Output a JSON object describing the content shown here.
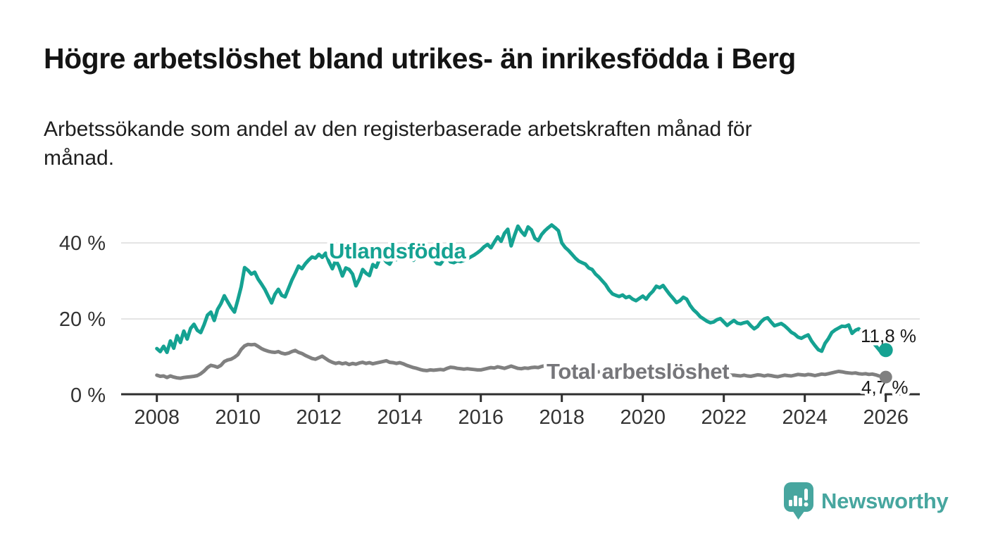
{
  "header": {
    "title": "Högre arbetslöshet bland utrikes- än inrikesfödda i Berg",
    "subtitle_lines": [
      "Arbetssökande som andel av den registerbaserade arbetskraften månad för",
      "månad."
    ]
  },
  "branding": {
    "name": "Newsworthy",
    "icon": "newsworthy-speech-bubble-bar-chart-icon",
    "color": "#47A69F"
  },
  "chart_data": {
    "type": "line",
    "x_tick_labels": [
      "2008",
      "2010",
      "2012",
      "2014",
      "2016",
      "2018",
      "2020",
      "2022",
      "2024",
      "2026"
    ],
    "y_ticks": [
      {
        "label": "0 %",
        "value": 0
      },
      {
        "label": "20 %",
        "value": 20
      },
      {
        "label": "40 %",
        "value": 40
      }
    ],
    "xlim": [
      2007.1,
      2026.85
    ],
    "ylim": [
      0,
      45
    ],
    "grid": "horizontal",
    "grid_color": "#dcdcdc",
    "axis_color": "#2e2e2e",
    "unit": "%",
    "series": [
      {
        "name": "Utlandsfödda",
        "color": "#15A292",
        "end_label": "11,8 %",
        "start_year": 2008,
        "points_per_year": 12,
        "values": [
          12.2,
          11.4,
          12.8,
          11.2,
          14.2,
          12.3,
          15.6,
          13.8,
          16.8,
          14.7,
          17.5,
          18.6,
          17.0,
          16.4,
          18.5,
          21.0,
          21.8,
          19.6,
          22.5,
          24.0,
          26.1,
          24.5,
          23.0,
          21.8,
          25.0,
          28.5,
          33.5,
          32.8,
          31.8,
          32.3,
          30.5,
          29.2,
          27.8,
          26.0,
          24.2,
          26.5,
          27.8,
          26.2,
          25.8,
          28.0,
          30.2,
          32.0,
          33.9,
          33.2,
          34.5,
          35.5,
          36.3,
          36.0,
          37.0,
          36.2,
          37.3,
          35.0,
          33.2,
          35.4,
          33.8,
          31.3,
          33.4,
          33.0,
          31.8,
          28.7,
          30.5,
          33.0,
          32.0,
          31.4,
          34.3,
          33.6,
          35.8,
          36.2,
          35.0,
          34.4,
          36.0,
          35.6,
          36.5,
          36.0,
          36.8,
          36.2,
          35.4,
          36.6,
          36.2,
          36.9,
          36.4,
          36.8,
          35.8,
          34.6,
          34.4,
          35.6,
          36.3,
          35.0,
          34.8,
          35.3,
          35.1,
          35.4,
          35.8,
          36.3,
          36.8,
          37.4,
          38.1,
          39.0,
          39.6,
          38.7,
          40.2,
          41.6,
          40.4,
          42.5,
          43.6,
          39.2,
          42.0,
          44.4,
          43.0,
          42.0,
          44.2,
          43.4,
          41.2,
          40.6,
          42.2,
          43.2,
          44.0,
          44.7,
          44.0,
          43.2,
          40.0,
          38.8,
          38.0,
          37.0,
          36.0,
          35.2,
          34.8,
          34.4,
          33.4,
          33.0,
          31.8,
          31.0,
          30.0,
          29.0,
          27.6,
          26.6,
          26.2,
          25.9,
          26.3,
          25.6,
          25.9,
          25.2,
          24.8,
          25.4,
          26.0,
          25.2,
          26.4,
          27.3,
          28.6,
          28.2,
          28.8,
          27.6,
          26.4,
          25.4,
          24.3,
          24.8,
          25.7,
          25.2,
          23.6,
          22.4,
          21.6,
          20.6,
          20.0,
          19.4,
          19.0,
          19.2,
          19.8,
          20.1,
          19.2,
          18.3,
          19.0,
          19.6,
          18.9,
          18.7,
          19.0,
          19.2,
          18.2,
          17.4,
          18.0,
          19.2,
          20.0,
          20.3,
          19.2,
          18.2,
          18.5,
          18.8,
          18.2,
          17.4,
          16.5,
          16.0,
          15.2,
          14.9,
          15.4,
          15.8,
          14.2,
          13.0,
          11.9,
          11.5,
          13.6,
          14.8,
          16.4,
          17.1,
          17.6,
          18.1,
          18.0,
          18.4,
          16.2,
          17.0,
          17.4,
          16.4,
          16.0,
          15.0,
          14.0,
          13.0,
          11.9,
          10.8,
          11.8
        ]
      },
      {
        "name": "Total arbetslöshet",
        "color": "#808080",
        "label_color": "#76767a",
        "end_label": "4,7 %",
        "start_year": 2008,
        "points_per_year": 12,
        "values": [
          5.2,
          4.9,
          5.0,
          4.6,
          5.0,
          4.7,
          4.5,
          4.4,
          4.6,
          4.7,
          4.8,
          4.9,
          5.1,
          5.6,
          6.3,
          7.2,
          7.8,
          7.6,
          7.3,
          7.8,
          8.8,
          9.2,
          9.4,
          9.9,
          10.6,
          12.0,
          12.9,
          13.3,
          13.2,
          13.3,
          12.8,
          12.2,
          11.8,
          11.5,
          11.3,
          11.2,
          11.4,
          11.0,
          10.8,
          11.0,
          11.4,
          11.7,
          11.2,
          10.9,
          10.4,
          10.0,
          9.6,
          9.4,
          9.8,
          10.2,
          9.6,
          9.0,
          8.6,
          8.3,
          8.5,
          8.2,
          8.4,
          8.0,
          8.3,
          8.1,
          8.4,
          8.6,
          8.3,
          8.5,
          8.2,
          8.4,
          8.6,
          8.8,
          9.0,
          8.6,
          8.5,
          8.3,
          8.5,
          8.2,
          7.8,
          7.5,
          7.2,
          7.0,
          6.7,
          6.5,
          6.4,
          6.6,
          6.5,
          6.6,
          6.7,
          6.6,
          7.0,
          7.3,
          7.2,
          7.0,
          6.9,
          6.8,
          6.9,
          6.8,
          6.7,
          6.6,
          6.6,
          6.8,
          7.0,
          7.2,
          7.1,
          7.4,
          7.2,
          7.0,
          7.3,
          7.6,
          7.3,
          7.0,
          6.9,
          7.1,
          7.0,
          7.2,
          7.3,
          7.2,
          7.5,
          7.7,
          7.3,
          7.0,
          6.9,
          6.8,
          6.8,
          6.7,
          6.6,
          6.5,
          6.4,
          6.4,
          6.3,
          6.3,
          6.2,
          6.2,
          6.1,
          6.1,
          6.0,
          6.0,
          5.9,
          5.9,
          5.8,
          5.8,
          5.8,
          5.7,
          5.7,
          5.8,
          5.8,
          5.9,
          6.0,
          6.2,
          6.5,
          6.8,
          7.0,
          7.0,
          6.9,
          6.8,
          6.7,
          6.6,
          6.5,
          6.4,
          6.3,
          6.2,
          6.1,
          6.0,
          5.9,
          5.8,
          5.7,
          5.6,
          5.6,
          5.5,
          5.5,
          5.4,
          5.4,
          5.3,
          5.2,
          5.2,
          5.1,
          5.0,
          5.2,
          5.0,
          4.9,
          5.1,
          5.3,
          5.2,
          5.0,
          5.2,
          5.1,
          4.9,
          4.8,
          5.0,
          5.2,
          5.1,
          5.0,
          5.2,
          5.4,
          5.3,
          5.2,
          5.4,
          5.3,
          5.1,
          5.3,
          5.5,
          5.4,
          5.6,
          5.8,
          6.0,
          6.2,
          6.1,
          5.9,
          5.8,
          5.7,
          5.8,
          5.6,
          5.5,
          5.6,
          5.4,
          5.5,
          5.3,
          5.0,
          4.8,
          4.7
        ]
      }
    ]
  }
}
